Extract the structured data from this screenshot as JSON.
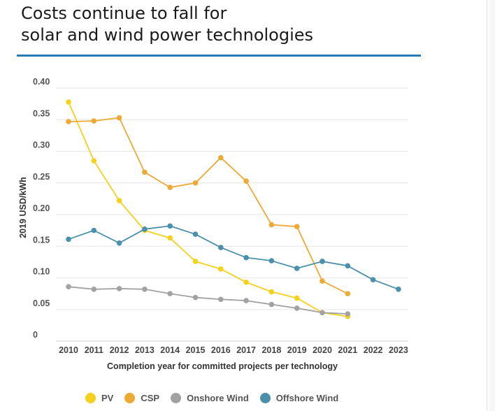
{
  "title": "Costs continue to fall for\nsolar and wind power technologies",
  "colors": {
    "accent_rule": "#2a7ab5",
    "PV": "#f5d01c",
    "CSP": "#eca934",
    "Onshore Wind": "#a2a2a2",
    "Offshore Wind": "#4a8fab"
  },
  "chart_data": {
    "type": "line",
    "title": "Costs continue to fall for solar and wind power technologies",
    "xlabel": "Completion year for committed projects per technology",
    "ylabel": "2019 USD/kWh",
    "x": [
      2010,
      2011,
      2012,
      2013,
      2014,
      2015,
      2016,
      2017,
      2018,
      2019,
      2020,
      2021,
      2022,
      2023
    ],
    "ylim": [
      0,
      0.4
    ],
    "yticks": [
      "0",
      "0.05",
      "0.10",
      "0.15",
      "0.20",
      "0.25",
      "0.30",
      "0.35",
      "0.40"
    ],
    "grid": true,
    "legend_position": "bottom",
    "series": [
      {
        "name": "PV",
        "values": [
          0.378,
          0.285,
          0.222,
          0.175,
          0.163,
          0.126,
          0.114,
          0.093,
          0.078,
          0.068,
          0.045,
          0.039,
          null,
          null
        ]
      },
      {
        "name": "CSP",
        "values": [
          0.347,
          0.348,
          0.353,
          0.267,
          0.243,
          0.25,
          0.29,
          0.253,
          0.184,
          0.181,
          0.095,
          0.075,
          null,
          null
        ]
      },
      {
        "name": "Onshore Wind",
        "values": [
          0.086,
          0.082,
          0.083,
          0.082,
          0.075,
          0.069,
          0.066,
          0.064,
          0.058,
          0.052,
          0.045,
          0.043,
          null,
          null
        ]
      },
      {
        "name": "Offshore Wind",
        "values": [
          0.161,
          0.175,
          0.155,
          0.177,
          0.182,
          0.169,
          0.148,
          0.132,
          0.127,
          0.115,
          0.126,
          0.119,
          0.097,
          0.082
        ]
      }
    ]
  }
}
